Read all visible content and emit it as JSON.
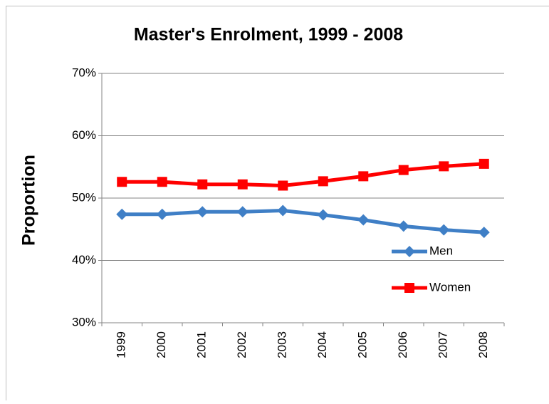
{
  "chart_data": {
    "type": "line",
    "title": "Master's Enrolment, 1999 - 2008",
    "y_label": "Proportion",
    "categories": [
      "1999",
      "2000",
      "2001",
      "2002",
      "2003",
      "2004",
      "2005",
      "2006",
      "2007",
      "2008"
    ],
    "series": [
      {
        "name": "Men",
        "color": "#3f7fc6",
        "marker": "diamond",
        "values": [
          47.4,
          47.4,
          47.8,
          47.8,
          48.0,
          47.3,
          46.5,
          45.5,
          44.9,
          44.5
        ]
      },
      {
        "name": "Women",
        "color": "#ff0000",
        "marker": "square",
        "values": [
          52.6,
          52.6,
          52.2,
          52.2,
          52.0,
          52.7,
          53.5,
          54.5,
          55.1,
          55.5
        ]
      }
    ],
    "ylim": [
      30,
      70
    ],
    "yticks": [
      {
        "value": 30,
        "label": "30%"
      },
      {
        "value": 40,
        "label": "40%"
      },
      {
        "value": 50,
        "label": "50%"
      },
      {
        "value": 60,
        "label": "60%"
      },
      {
        "value": 70,
        "label": "70%"
      }
    ],
    "grid": true,
    "legend": "right"
  }
}
